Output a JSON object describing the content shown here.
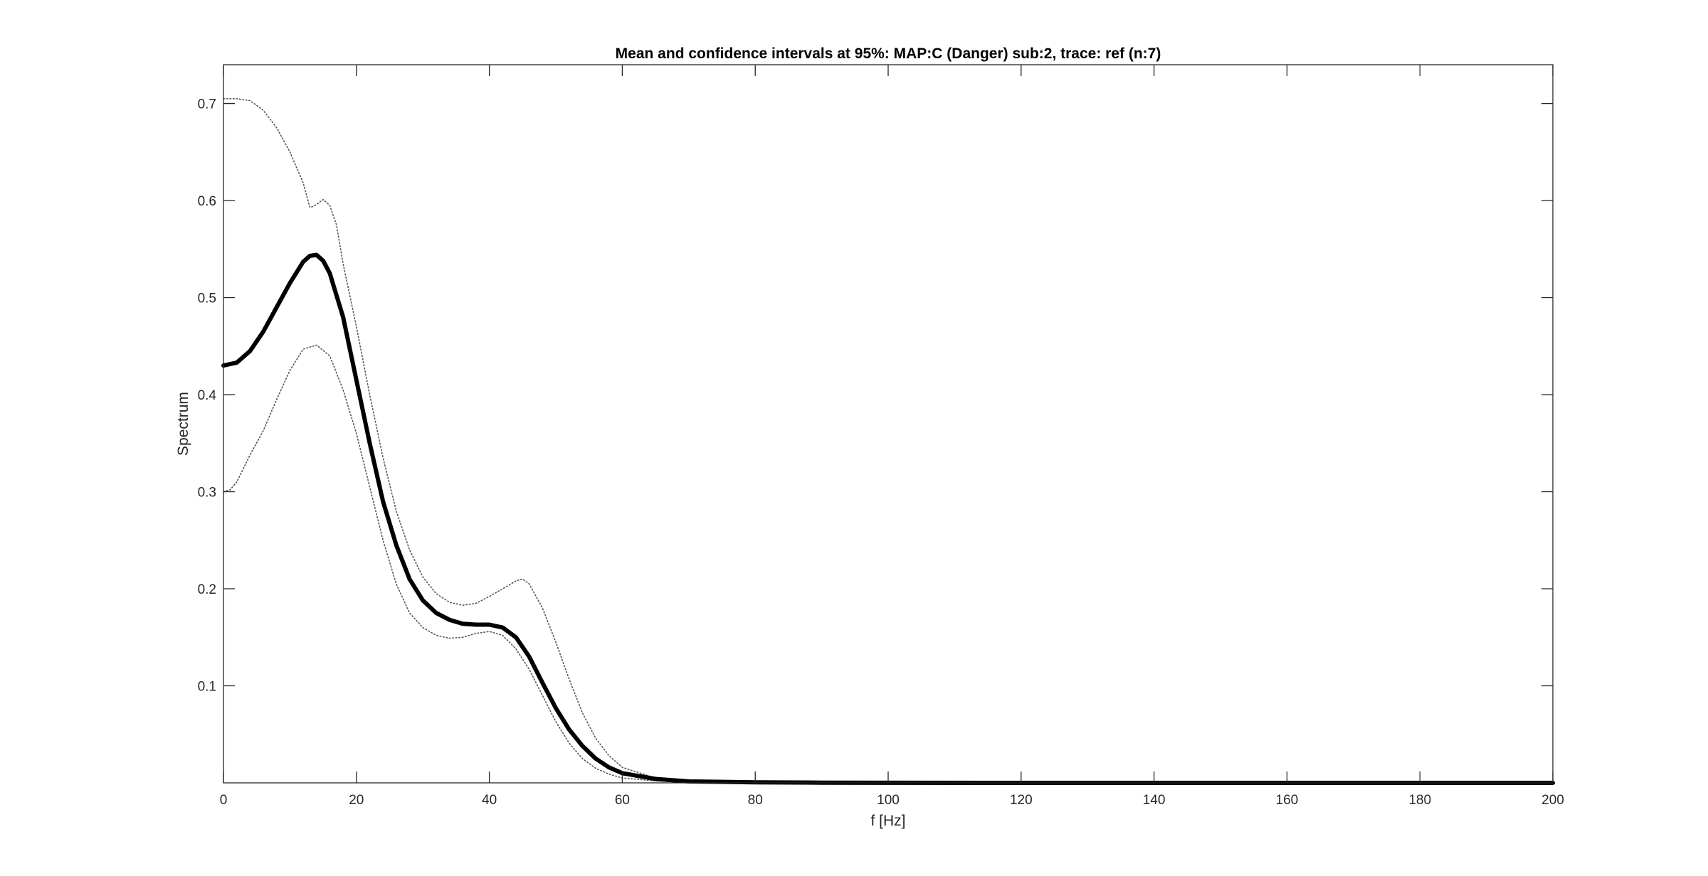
{
  "chart_data": {
    "type": "line",
    "title": "Mean and confidence intervals at 95%: MAP:C (Danger) sub:2, trace: ref (n:7)",
    "xlabel": "f [Hz]",
    "ylabel": "Spectrum",
    "xlim": [
      0,
      200
    ],
    "ylim": [
      0,
      0.74
    ],
    "xticks": [
      0,
      20,
      40,
      60,
      80,
      100,
      120,
      140,
      160,
      180,
      200
    ],
    "xtick_labels": [
      "0",
      "20",
      "40",
      "60",
      "80",
      "100",
      "120",
      "140",
      "160",
      "180",
      "200"
    ],
    "yticks": [
      0.1,
      0.2,
      0.3,
      0.4,
      0.5,
      0.6,
      0.7
    ],
    "ytick_labels": [
      "0.1",
      "0.2",
      "0.3",
      "0.4",
      "0.5",
      "0.6",
      "0.7"
    ],
    "grid": false,
    "box": true,
    "series": [
      {
        "role": "mean",
        "color": "#000000",
        "style": "solid-thick",
        "x": [
          0,
          2,
          4,
          6,
          8,
          10,
          12,
          13,
          14,
          15,
          16,
          18,
          20,
          22,
          24,
          26,
          28,
          30,
          32,
          34,
          36,
          38,
          40,
          42,
          44,
          46,
          48,
          50,
          52,
          54,
          56,
          58,
          60,
          65,
          70,
          80,
          90,
          100,
          120,
          150,
          200
        ],
        "y": [
          0.43,
          0.433,
          0.445,
          0.465,
          0.49,
          0.515,
          0.537,
          0.543,
          0.544,
          0.538,
          0.525,
          0.48,
          0.415,
          0.35,
          0.29,
          0.245,
          0.21,
          0.188,
          0.175,
          0.168,
          0.164,
          0.163,
          0.163,
          0.16,
          0.15,
          0.13,
          0.103,
          0.077,
          0.055,
          0.038,
          0.025,
          0.016,
          0.01,
          0.004,
          0.0015,
          0.0005,
          0.0002,
          0.0001,
          0,
          0,
          0
        ]
      },
      {
        "role": "upper-ci",
        "color": "#555555",
        "style": "dotted",
        "x": [
          0,
          2,
          4,
          6,
          8,
          10,
          12,
          13,
          13.5,
          14,
          15,
          16,
          17,
          18,
          20,
          22,
          24,
          26,
          28,
          30,
          32,
          34,
          36,
          38,
          40,
          42,
          44,
          45,
          46,
          48,
          50,
          52,
          54,
          56,
          58,
          60,
          65,
          70,
          80,
          100,
          200
        ],
        "y": [
          0.705,
          0.705,
          0.703,
          0.693,
          0.675,
          0.65,
          0.618,
          0.593,
          0.594,
          0.596,
          0.601,
          0.595,
          0.575,
          0.535,
          0.47,
          0.4,
          0.335,
          0.28,
          0.24,
          0.212,
          0.195,
          0.186,
          0.183,
          0.185,
          0.192,
          0.2,
          0.208,
          0.21,
          0.205,
          0.18,
          0.145,
          0.107,
          0.072,
          0.046,
          0.028,
          0.016,
          0.005,
          0.0015,
          0.0003,
          0,
          0
        ]
      },
      {
        "role": "lower-ci",
        "color": "#555555",
        "style": "dotted",
        "x": [
          0,
          1,
          2,
          4,
          6,
          8,
          10,
          12,
          14,
          16,
          18,
          20,
          22,
          24,
          26,
          28,
          30,
          32,
          34,
          36,
          38,
          40,
          42,
          44,
          46,
          48,
          50,
          52,
          54,
          56,
          58,
          60,
          65,
          70,
          80,
          100,
          200
        ],
        "y": [
          0.3,
          0.302,
          0.31,
          0.338,
          0.363,
          0.395,
          0.425,
          0.447,
          0.451,
          0.44,
          0.405,
          0.36,
          0.305,
          0.25,
          0.205,
          0.175,
          0.16,
          0.152,
          0.149,
          0.15,
          0.154,
          0.156,
          0.152,
          0.138,
          0.117,
          0.09,
          0.063,
          0.041,
          0.025,
          0.015,
          0.009,
          0.005,
          0.002,
          0.0007,
          0.0002,
          0,
          0
        ]
      }
    ]
  }
}
